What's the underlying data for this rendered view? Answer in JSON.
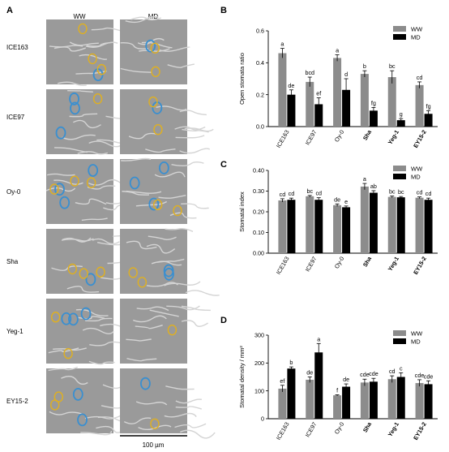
{
  "figure": {
    "panel_a": {
      "letter": "A",
      "col_headers": [
        "WW",
        "MD"
      ],
      "rows": [
        "ICE163",
        "ICE97",
        "Oy-0",
        "Sha",
        "Yeg-1",
        "EY15-2"
      ],
      "scale_bar": "100 µm",
      "stomata_colors": {
        "open": "#3a8fd0",
        "closed": "#e0b020"
      }
    }
  },
  "chart_data": [
    {
      "type": "bar",
      "panel": "B",
      "ylabel": "Open stomata ratio",
      "ylim": [
        0,
        0.6
      ],
      "yticks": [
        "0.0",
        "0.2",
        "0.4",
        "0.6"
      ],
      "categories": [
        "ICE163",
        "ICE97",
        "Oy-0",
        "Sha",
        "Yeg-1",
        "EY15-2"
      ],
      "bold_categories": [
        "Sha",
        "Yeg-1",
        "EY15-2"
      ],
      "legend": [
        "WW",
        "MD"
      ],
      "legend_position": "top-right",
      "series": [
        {
          "name": "WW",
          "color": "#8c8c8c",
          "values": [
            0.46,
            0.28,
            0.43,
            0.33,
            0.31,
            0.26
          ],
          "errors": [
            0.03,
            0.03,
            0.02,
            0.02,
            0.04,
            0.02
          ],
          "letters": [
            "a",
            "bcd",
            "a",
            "b",
            "bc",
            "cd"
          ]
        },
        {
          "name": "MD",
          "color": "#000000",
          "values": [
            0.2,
            0.14,
            0.23,
            0.1,
            0.04,
            0.08
          ],
          "errors": [
            0.03,
            0.04,
            0.07,
            0.02,
            0.01,
            0.02
          ],
          "letters": [
            "de",
            "ef",
            "d",
            "fg",
            "g",
            "fg"
          ]
        }
      ]
    },
    {
      "type": "bar",
      "panel": "C",
      "ylabel": "Stomatal index",
      "ylim": [
        0,
        0.4
      ],
      "yticks": [
        "0.00",
        "0.10",
        "0.20",
        "0.30",
        "0.40"
      ],
      "categories": [
        "ICE163",
        "ICE97",
        "Oy-0",
        "Sha",
        "Yeg-1",
        "EY15-2"
      ],
      "bold_categories": [
        "Sha",
        "Yeg-1",
        "EY15-2"
      ],
      "legend": [
        "WW",
        "MD"
      ],
      "legend_position": "top-right",
      "series": [
        {
          "name": "WW",
          "color": "#8c8c8c",
          "values": [
            0.255,
            0.275,
            0.232,
            0.322,
            0.272,
            0.268
          ],
          "errors": [
            0.008,
            0.004,
            0.006,
            0.015,
            0.004,
            0.004
          ],
          "letters": [
            "cd",
            "bc",
            "de",
            "a",
            "bc",
            "cd"
          ]
        },
        {
          "name": "MD",
          "color": "#000000",
          "values": [
            0.258,
            0.258,
            0.222,
            0.292,
            0.27,
            0.258
          ],
          "errors": [
            0.008,
            0.01,
            0.006,
            0.01,
            0.004,
            0.008
          ],
          "letters": [
            "cd",
            "cd",
            "e",
            "ab",
            "bc",
            "cd"
          ]
        }
      ]
    },
    {
      "type": "bar",
      "panel": "D",
      "ylabel": "Stomatal density / mm²",
      "ylim": [
        0,
        300
      ],
      "yticks": [
        "0",
        "100",
        "200",
        "300"
      ],
      "categories": [
        "ICE163",
        "ICE97",
        "Oy-0",
        "Sha",
        "Yeg-1",
        "EY15-2"
      ],
      "bold_categories": [
        "Sha",
        "Yeg-1",
        "EY15-2"
      ],
      "legend": [
        "WW",
        "MD"
      ],
      "legend_position": "top-right",
      "series": [
        {
          "name": "WW",
          "color": "#8c8c8c",
          "values": [
            108,
            140,
            84,
            130,
            142,
            128
          ],
          "errors": [
            12,
            10,
            2,
            12,
            12,
            12
          ],
          "letters": [
            "ef",
            "de",
            "f",
            "cde",
            "cd",
            "cde"
          ]
        },
        {
          "name": "MD",
          "color": "#000000",
          "values": [
            180,
            238,
            115,
            133,
            150,
            124
          ],
          "errors": [
            6,
            32,
            10,
            12,
            15,
            12
          ],
          "letters": [
            "b",
            "a",
            "de",
            "cde",
            "c",
            "cde"
          ]
        }
      ]
    }
  ],
  "panel_letters": [
    "B",
    "C",
    "D"
  ]
}
